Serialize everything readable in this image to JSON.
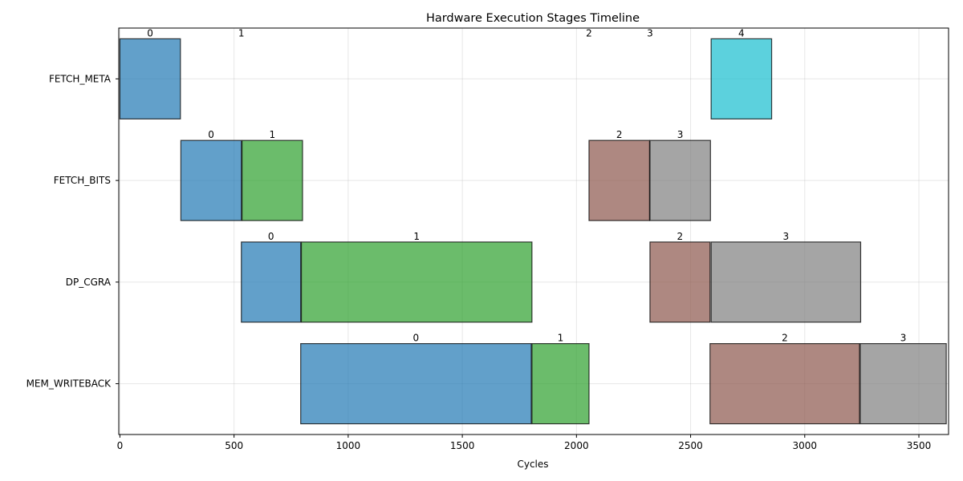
{
  "chart_data": {
    "type": "bar",
    "orientation": "horizontal-gantt",
    "title": "Hardware Execution Stages Timeline",
    "xlabel": "Cycles",
    "ylabel": "",
    "xlim": [
      -5,
      3630
    ],
    "x_ticks": [
      0,
      500,
      1000,
      1500,
      2000,
      2500,
      3000,
      3500
    ],
    "grid": true,
    "stages": [
      "FETCH_META",
      "FETCH_BITS",
      "DP_CGRA",
      "MEM_WRITEBACK"
    ],
    "task_colors": {
      "0": "#1f77b4",
      "1": "#2ca02c",
      "2": "#8c564b",
      "3": "#7f7f7f",
      "4": "#17becf"
    },
    "bars": [
      {
        "stage": "FETCH_META",
        "task": "0",
        "start": 0,
        "end": 265
      },
      {
        "stage": "FETCH_META",
        "task": "1",
        "start": 532,
        "end": 532
      },
      {
        "stage": "FETCH_META",
        "task": "2",
        "start": 2055,
        "end": 2055
      },
      {
        "stage": "FETCH_META",
        "task": "3",
        "start": 2322,
        "end": 2322
      },
      {
        "stage": "FETCH_META",
        "task": "4",
        "start": 2590,
        "end": 2855
      },
      {
        "stage": "FETCH_BITS",
        "task": "0",
        "start": 267,
        "end": 532
      },
      {
        "stage": "FETCH_BITS",
        "task": "1",
        "start": 535,
        "end": 800
      },
      {
        "stage": "FETCH_BITS",
        "task": "2",
        "start": 2055,
        "end": 2320
      },
      {
        "stage": "FETCH_BITS",
        "task": "3",
        "start": 2322,
        "end": 2587
      },
      {
        "stage": "DP_CGRA",
        "task": "0",
        "start": 532,
        "end": 792
      },
      {
        "stage": "DP_CGRA",
        "task": "1",
        "start": 795,
        "end": 1805
      },
      {
        "stage": "DP_CGRA",
        "task": "2",
        "start": 2322,
        "end": 2585
      },
      {
        "stage": "DP_CGRA",
        "task": "3",
        "start": 2590,
        "end": 3245
      },
      {
        "stage": "MEM_WRITEBACK",
        "task": "0",
        "start": 792,
        "end": 1802
      },
      {
        "stage": "MEM_WRITEBACK",
        "task": "1",
        "start": 1805,
        "end": 2055
      },
      {
        "stage": "MEM_WRITEBACK",
        "task": "2",
        "start": 2585,
        "end": 3240
      },
      {
        "stage": "MEM_WRITEBACK",
        "task": "3",
        "start": 3243,
        "end": 3620
      }
    ]
  }
}
